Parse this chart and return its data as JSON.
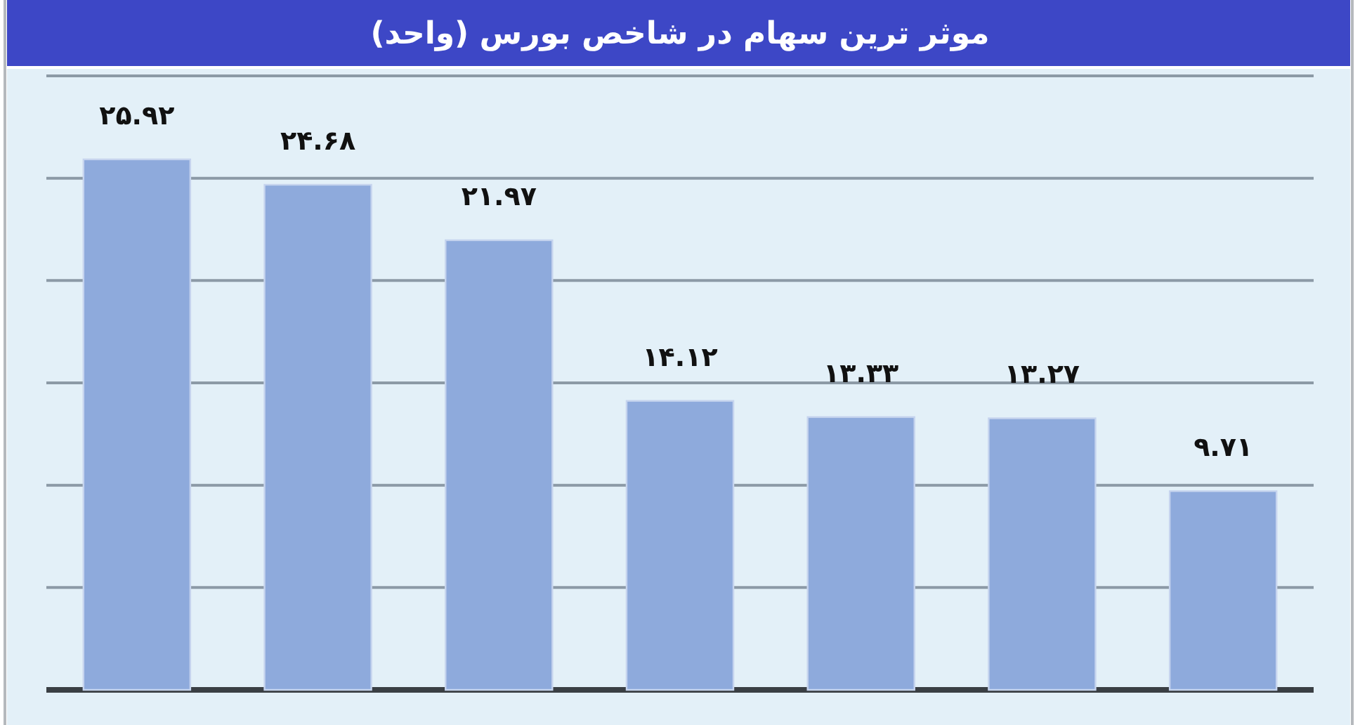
{
  "chart_data": {
    "type": "bar",
    "title": "موثر ترین سهام در شاخص بورس (واحد)",
    "categories": [
      null,
      null,
      null,
      null,
      null,
      null,
      null
    ],
    "values": [
      25.92,
      24.68,
      21.97,
      14.12,
      13.33,
      13.27,
      9.71
    ],
    "value_labels": [
      "۲۵.۹۲",
      "۲۴.۶۸",
      "۲۱.۹۷",
      "۱۴.۱۲",
      "۱۳.۳۳",
      "۱۳.۲۷",
      "۹.۷۱"
    ],
    "color": "#8eaadc",
    "ylim": [
      0,
      30
    ],
    "yticks": [
      {
        "value": 0,
        "label": null
      },
      {
        "value": 5,
        "label": null
      },
      {
        "value": 10,
        "label": null
      },
      {
        "value": 15,
        "label": null
      },
      {
        "value": 20,
        "label": null
      },
      {
        "value": 25,
        "label": null
      },
      {
        "value": 30,
        "label": null
      }
    ],
    "grid": "y"
  }
}
